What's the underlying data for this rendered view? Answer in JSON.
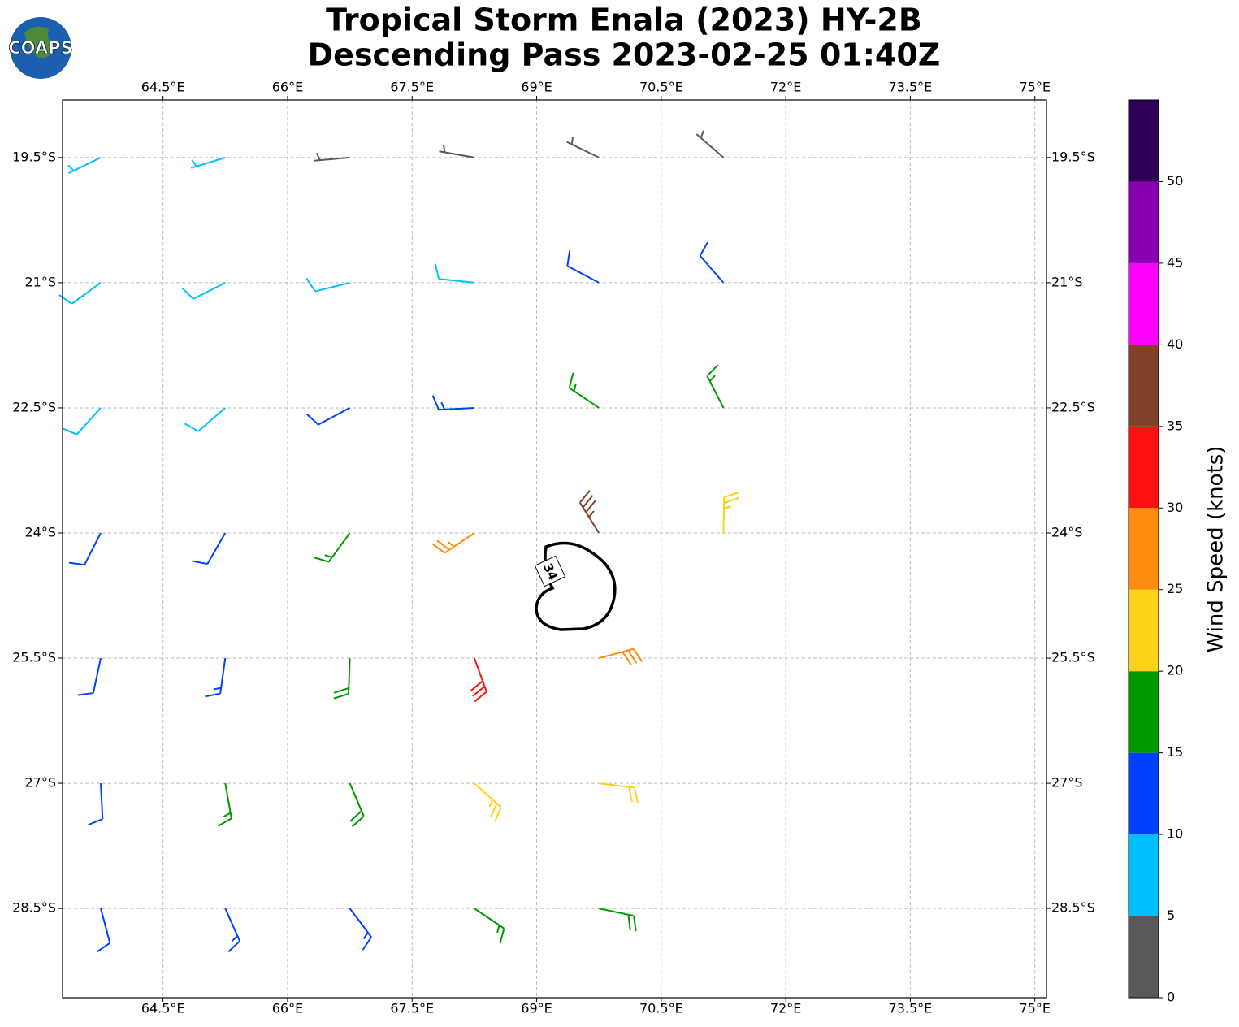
{
  "chart_data": {
    "type": "wind_barbs",
    "title": [
      "Tropical Storm Enala (2023) HY-2B",
      "Descending Pass 2023-02-25 01:40Z"
    ],
    "logo_text": "COAPS",
    "xlim": [
      63.29,
      75.14
    ],
    "ylim": [
      -29.57,
      -18.81
    ],
    "xticks": [
      {
        "value": 64.5,
        "label": "64.5°E"
      },
      {
        "value": 66,
        "label": "66°E"
      },
      {
        "value": 67.5,
        "label": "67.5°E"
      },
      {
        "value": 69,
        "label": "69°E"
      },
      {
        "value": 70.5,
        "label": "70.5°E"
      },
      {
        "value": 72,
        "label": "72°E"
      },
      {
        "value": 73.5,
        "label": "73.5°E"
      },
      {
        "value": 75,
        "label": "75°E"
      }
    ],
    "yticks": [
      {
        "value": -19.5,
        "label": "19.5°S"
      },
      {
        "value": -21,
        "label": "21°S"
      },
      {
        "value": -22.5,
        "label": "22.5°S"
      },
      {
        "value": -24,
        "label": "24°S"
      },
      {
        "value": -25.5,
        "label": "25.5°S"
      },
      {
        "value": -27,
        "label": "27°S"
      },
      {
        "value": -28.5,
        "label": "28.5°S"
      }
    ],
    "grid": true,
    "contour": {
      "level": 34
    },
    "colorbar": {
      "label": "Wind Speed (knots)",
      "lim": [
        0,
        55
      ],
      "ticks": [
        0,
        5,
        10,
        15,
        20,
        25,
        30,
        35,
        40,
        45,
        50
      ],
      "colors": [
        "#595959",
        "#00bfff",
        "#0040ff",
        "#009900",
        "#ffd21a",
        "#ff8c0a",
        "#ff1010",
        "#80402a",
        "#ff00ff",
        "#8a00b0",
        "#2e0058"
      ]
    },
    "barbs": [
      {
        "lon": 63.75,
        "lat": -19.5,
        "speed": 7,
        "direction": 244
      },
      {
        "lon": 65.25,
        "lat": -19.5,
        "speed": 6,
        "direction": 253
      },
      {
        "lon": 66.75,
        "lat": -19.5,
        "speed": 3,
        "direction": 265
      },
      {
        "lon": 68.25,
        "lat": -19.5,
        "speed": 4,
        "direction": 280
      },
      {
        "lon": 69.75,
        "lat": -19.5,
        "speed": 4,
        "direction": 296
      },
      {
        "lon": 71.25,
        "lat": -19.5,
        "speed": 3,
        "direction": 311
      },
      {
        "lon": 63.75,
        "lat": -21,
        "speed": 8,
        "direction": 234
      },
      {
        "lon": 65.25,
        "lat": -21,
        "speed": 9,
        "direction": 243
      },
      {
        "lon": 66.75,
        "lat": -21,
        "speed": 9,
        "direction": 256
      },
      {
        "lon": 68.25,
        "lat": -21,
        "speed": 9,
        "direction": 276
      },
      {
        "lon": 69.75,
        "lat": -21,
        "speed": 11,
        "direction": 298
      },
      {
        "lon": 71.25,
        "lat": -21,
        "speed": 11,
        "direction": 319
      },
      {
        "lon": 63.75,
        "lat": -22.5,
        "speed": 9,
        "direction": 222
      },
      {
        "lon": 65.25,
        "lat": -22.5,
        "speed": 9,
        "direction": 229
      },
      {
        "lon": 66.75,
        "lat": -22.5,
        "speed": 12,
        "direction": 242
      },
      {
        "lon": 68.25,
        "lat": -22.5,
        "speed": 14,
        "direction": 267
      },
      {
        "lon": 69.75,
        "lat": -22.5,
        "speed": 17,
        "direction": 304
      },
      {
        "lon": 71.25,
        "lat": -22.5,
        "speed": 16,
        "direction": 333
      },
      {
        "lon": 63.75,
        "lat": -24,
        "speed": 11,
        "direction": 207
      },
      {
        "lon": 65.25,
        "lat": -24,
        "speed": 12,
        "direction": 210
      },
      {
        "lon": 66.75,
        "lat": -24,
        "speed": 16,
        "direction": 216
      },
      {
        "lon": 68.25,
        "lat": -24,
        "speed": 27,
        "direction": 236
      },
      {
        "lon": 69.75,
        "lat": -24,
        "speed": 36,
        "direction": 328
      },
      {
        "lon": 71.25,
        "lat": -24,
        "speed": 23,
        "direction": 1
      },
      {
        "lon": 63.75,
        "lat": -25.5,
        "speed": 12,
        "direction": 192
      },
      {
        "lon": 65.25,
        "lat": -25.5,
        "speed": 14,
        "direction": 188
      },
      {
        "lon": 66.75,
        "lat": -25.5,
        "speed": 18,
        "direction": 182
      },
      {
        "lon": 68.25,
        "lat": -25.5,
        "speed": 32,
        "direction": 160
      },
      {
        "lon": 69.75,
        "lat": -25.5,
        "speed": 28,
        "direction": 75
      },
      {
        "lon": 63.75,
        "lat": -27,
        "speed": 12,
        "direction": 177
      },
      {
        "lon": 65.25,
        "lat": -27,
        "speed": 16,
        "direction": 170
      },
      {
        "lon": 66.75,
        "lat": -27,
        "speed": 19,
        "direction": 157
      },
      {
        "lon": 68.25,
        "lat": -27,
        "speed": 24,
        "direction": 132
      },
      {
        "lon": 69.75,
        "lat": -27,
        "speed": 22,
        "direction": 97
      },
      {
        "lon": 63.75,
        "lat": -28.5,
        "speed": 11,
        "direction": 165
      },
      {
        "lon": 65.25,
        "lat": -28.5,
        "speed": 13,
        "direction": 156
      },
      {
        "lon": 66.75,
        "lat": -28.5,
        "speed": 14,
        "direction": 143
      },
      {
        "lon": 68.25,
        "lat": -28.5,
        "speed": 17,
        "direction": 124
      },
      {
        "lon": 69.75,
        "lat": -28.5,
        "speed": 18,
        "direction": 102
      }
    ]
  }
}
